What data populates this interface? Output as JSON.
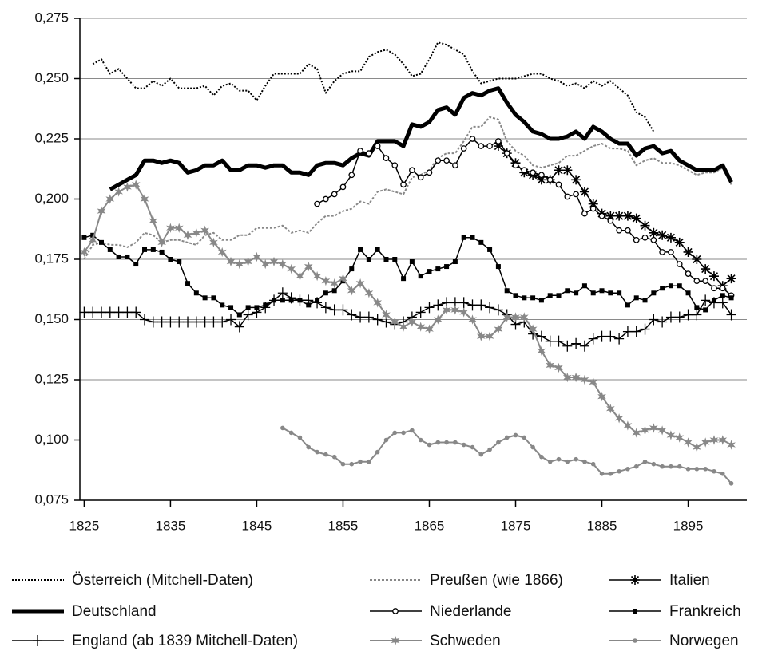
{
  "chart_data": {
    "type": "line",
    "x": [
      1825,
      1826,
      1827,
      1828,
      1829,
      1830,
      1831,
      1832,
      1833,
      1834,
      1835,
      1836,
      1837,
      1838,
      1839,
      1840,
      1841,
      1842,
      1843,
      1844,
      1845,
      1846,
      1847,
      1848,
      1849,
      1850,
      1851,
      1852,
      1853,
      1854,
      1855,
      1856,
      1857,
      1858,
      1859,
      1860,
      1861,
      1862,
      1863,
      1864,
      1865,
      1866,
      1867,
      1868,
      1869,
      1870,
      1871,
      1872,
      1873,
      1874,
      1875,
      1876,
      1877,
      1878,
      1879,
      1880,
      1881,
      1882,
      1883,
      1884,
      1885,
      1886,
      1887,
      1888,
      1889,
      1890,
      1891,
      1892,
      1893,
      1894,
      1895,
      1896,
      1897,
      1898,
      1899,
      1900
    ],
    "xlim": [
      1824.5,
      1901.8
    ],
    "xticks": [
      1825,
      1835,
      1845,
      1855,
      1865,
      1875,
      1885,
      1895
    ],
    "ylim": [
      0.075,
      0.275
    ],
    "yticks": [
      {
        "value": 0.075,
        "label": "0,075"
      },
      {
        "value": 0.1,
        "label": "0,100"
      },
      {
        "value": 0.125,
        "label": "0,125"
      },
      {
        "value": 0.15,
        "label": "0,150"
      },
      {
        "value": 0.175,
        "label": "0,175"
      },
      {
        "value": 0.2,
        "label": "0,200"
      },
      {
        "value": 0.225,
        "label": "0,225"
      },
      {
        "value": 0.25,
        "label": "0,250"
      },
      {
        "value": 0.275,
        "label": "0,275"
      }
    ],
    "grid": true,
    "series": [
      {
        "name": "Österreich (Mitchell-Daten)",
        "color": "#000000",
        "width": 2,
        "dash": "2 2",
        "marker": "none",
        "values": [
          null,
          0.256,
          0.258,
          0.252,
          0.254,
          0.25,
          0.246,
          0.246,
          0.249,
          0.247,
          0.25,
          0.246,
          0.246,
          0.246,
          0.247,
          0.243,
          0.247,
          0.248,
          0.245,
          0.245,
          0.241,
          0.247,
          0.252,
          0.252,
          0.252,
          0.252,
          0.256,
          0.254,
          0.244,
          0.249,
          0.252,
          0.253,
          0.253,
          0.259,
          0.261,
          0.262,
          0.26,
          0.256,
          0.251,
          0.252,
          0.258,
          0.265,
          0.264,
          0.262,
          0.26,
          0.253,
          0.248,
          0.249,
          0.25,
          0.25,
          0.25,
          0.251,
          0.252,
          0.252,
          0.25,
          0.249,
          0.247,
          0.248,
          0.246,
          0.249,
          0.247,
          0.249,
          0.246,
          0.243,
          0.236,
          0.234,
          0.228,
          null,
          null,
          null,
          null,
          null,
          null,
          null,
          null,
          null
        ]
      },
      {
        "name": "Preußen (wie 1866)",
        "color": "#888888",
        "width": 2,
        "dash": "3 2",
        "marker": "none",
        "values": [
          0.175,
          0.181,
          0.182,
          0.181,
          0.181,
          0.18,
          0.182,
          0.186,
          0.185,
          0.182,
          0.183,
          0.183,
          0.182,
          0.181,
          0.185,
          0.186,
          0.183,
          0.183,
          0.185,
          0.185,
          0.188,
          0.188,
          0.188,
          0.189,
          0.186,
          0.187,
          0.186,
          0.19,
          0.193,
          0.193,
          0.195,
          0.196,
          0.199,
          0.198,
          0.203,
          0.204,
          0.203,
          0.202,
          0.209,
          0.21,
          0.212,
          0.217,
          0.219,
          0.219,
          0.224,
          0.23,
          0.23,
          0.234,
          0.233,
          0.224,
          0.22,
          0.218,
          0.214,
          0.213,
          0.214,
          0.215,
          0.218,
          0.218,
          0.22,
          0.222,
          0.223,
          0.221,
          0.221,
          0.22,
          0.214,
          0.216,
          0.217,
          0.215,
          0.215,
          0.214,
          0.212,
          0.21,
          0.211,
          0.211,
          0.213,
          0.206
        ]
      },
      {
        "name": "Italien",
        "color": "#000000",
        "width": 1.5,
        "dash": "none",
        "marker": "asterisk",
        "values": [
          null,
          null,
          null,
          null,
          null,
          null,
          null,
          null,
          null,
          null,
          null,
          null,
          null,
          null,
          null,
          null,
          null,
          null,
          null,
          null,
          null,
          null,
          null,
          null,
          null,
          null,
          null,
          null,
          null,
          null,
          null,
          null,
          null,
          null,
          null,
          null,
          null,
          null,
          null,
          null,
          null,
          null,
          null,
          null,
          null,
          null,
          null,
          null,
          0.222,
          0.219,
          0.215,
          0.211,
          0.21,
          0.208,
          0.208,
          0.212,
          0.212,
          0.208,
          0.203,
          0.198,
          0.194,
          0.193,
          0.193,
          0.193,
          0.192,
          0.189,
          0.186,
          0.185,
          0.184,
          0.182,
          0.178,
          0.175,
          0.171,
          0.168,
          0.164,
          0.167
        ]
      },
      {
        "name": "Deutschland",
        "color": "#000000",
        "width": 5,
        "dash": "none",
        "marker": "none",
        "values": [
          null,
          null,
          null,
          0.204,
          0.206,
          0.208,
          0.21,
          0.216,
          0.216,
          0.215,
          0.216,
          0.215,
          0.211,
          0.212,
          0.214,
          0.214,
          0.216,
          0.212,
          0.212,
          0.214,
          0.214,
          0.213,
          0.214,
          0.214,
          0.211,
          0.211,
          0.21,
          0.214,
          0.215,
          0.215,
          0.214,
          0.217,
          0.219,
          0.218,
          0.224,
          0.224,
          0.224,
          0.222,
          0.231,
          0.23,
          0.232,
          0.237,
          0.238,
          0.235,
          0.242,
          0.244,
          0.243,
          0.245,
          0.246,
          0.24,
          0.235,
          0.232,
          0.228,
          0.227,
          0.225,
          0.225,
          0.226,
          0.228,
          0.225,
          0.23,
          0.228,
          0.225,
          0.223,
          0.223,
          0.218,
          0.221,
          0.222,
          0.219,
          0.22,
          0.216,
          0.214,
          0.212,
          0.212,
          0.212,
          0.214,
          0.207
        ]
      },
      {
        "name": "Niederlande",
        "color": "#000000",
        "width": 1.5,
        "dash": "none",
        "marker": "circle",
        "values": [
          null,
          null,
          null,
          null,
          null,
          null,
          null,
          null,
          null,
          null,
          null,
          null,
          null,
          null,
          null,
          null,
          null,
          null,
          null,
          null,
          null,
          null,
          null,
          null,
          null,
          null,
          null,
          0.198,
          0.2,
          0.202,
          0.205,
          0.21,
          0.22,
          0.219,
          0.222,
          0.217,
          0.214,
          0.206,
          0.212,
          0.209,
          0.211,
          0.216,
          0.216,
          0.214,
          0.221,
          0.225,
          0.222,
          0.222,
          0.224,
          0.219,
          0.214,
          0.212,
          0.211,
          0.21,
          0.208,
          0.206,
          0.201,
          0.202,
          0.194,
          0.196,
          0.193,
          0.191,
          0.187,
          0.187,
          0.183,
          0.184,
          0.183,
          0.178,
          0.178,
          0.173,
          0.169,
          0.166,
          0.166,
          0.163,
          0.163,
          0.16
        ]
      },
      {
        "name": "Frankreich",
        "color": "#000000",
        "width": 1.5,
        "dash": "none",
        "marker": "square",
        "values": [
          0.184,
          0.185,
          0.182,
          0.179,
          0.176,
          0.176,
          0.173,
          0.179,
          0.179,
          0.178,
          0.175,
          0.174,
          0.165,
          0.161,
          0.159,
          0.159,
          0.156,
          0.155,
          0.152,
          0.155,
          0.155,
          0.156,
          0.158,
          0.158,
          0.158,
          0.158,
          0.156,
          0.158,
          0.161,
          0.162,
          0.166,
          0.171,
          0.179,
          0.175,
          0.179,
          0.175,
          0.175,
          0.167,
          0.174,
          0.168,
          0.17,
          0.171,
          0.172,
          0.174,
          0.184,
          0.184,
          0.182,
          0.179,
          0.172,
          0.162,
          0.16,
          0.159,
          0.159,
          0.158,
          0.16,
          0.16,
          0.162,
          0.161,
          0.164,
          0.161,
          0.162,
          0.161,
          0.161,
          0.156,
          0.159,
          0.158,
          0.161,
          0.163,
          0.164,
          0.164,
          0.161,
          0.155,
          0.154,
          0.158,
          0.16,
          0.159
        ]
      },
      {
        "name": "England (ab 1839 Mitchell-Daten)",
        "color": "#000000",
        "width": 1.5,
        "dash": "none",
        "marker": "plus",
        "values": [
          0.153,
          0.153,
          0.153,
          0.153,
          0.153,
          0.153,
          0.153,
          0.15,
          0.149,
          0.149,
          0.149,
          0.149,
          0.149,
          0.149,
          0.149,
          0.149,
          0.149,
          0.15,
          0.147,
          0.152,
          0.153,
          0.155,
          0.158,
          0.161,
          0.159,
          0.158,
          0.158,
          0.157,
          0.155,
          0.154,
          0.154,
          0.152,
          0.151,
          0.151,
          0.15,
          0.149,
          0.148,
          0.149,
          0.151,
          0.153,
          0.155,
          0.156,
          0.157,
          0.157,
          0.157,
          0.156,
          0.156,
          0.155,
          0.154,
          0.152,
          0.148,
          0.149,
          0.144,
          0.143,
          0.141,
          0.141,
          0.139,
          0.14,
          0.139,
          0.142,
          0.143,
          0.143,
          0.142,
          0.145,
          0.145,
          0.146,
          0.15,
          0.149,
          0.151,
          0.151,
          0.152,
          0.152,
          0.158,
          0.157,
          0.157,
          0.152
        ]
      },
      {
        "name": "Schweden",
        "color": "#888888",
        "width": 2,
        "dash": "none",
        "marker": "star",
        "values": [
          0.178,
          0.183,
          0.195,
          0.2,
          0.203,
          0.205,
          0.206,
          0.2,
          0.191,
          0.182,
          0.188,
          0.188,
          0.185,
          0.186,
          0.187,
          0.182,
          0.178,
          0.174,
          0.173,
          0.174,
          0.176,
          0.173,
          0.174,
          0.173,
          0.171,
          0.168,
          0.172,
          0.168,
          0.166,
          0.165,
          0.167,
          0.162,
          0.165,
          0.161,
          0.157,
          0.152,
          0.149,
          0.147,
          0.149,
          0.147,
          0.146,
          0.15,
          0.154,
          0.154,
          0.153,
          0.15,
          0.143,
          0.143,
          0.146,
          0.151,
          0.151,
          0.151,
          0.146,
          0.137,
          0.131,
          0.13,
          0.126,
          0.126,
          0.125,
          0.124,
          0.118,
          0.113,
          0.109,
          0.106,
          0.103,
          0.104,
          0.105,
          0.104,
          0.102,
          0.101,
          0.099,
          0.097,
          0.099,
          0.1,
          0.1,
          0.098
        ]
      },
      {
        "name": "Norwegen",
        "color": "#888888",
        "width": 2,
        "dash": "none",
        "marker": "dot",
        "values": [
          null,
          null,
          null,
          null,
          null,
          null,
          null,
          null,
          null,
          null,
          null,
          null,
          null,
          null,
          null,
          null,
          null,
          null,
          null,
          null,
          null,
          null,
          null,
          0.105,
          0.103,
          0.101,
          0.097,
          0.095,
          0.094,
          0.093,
          0.09,
          0.09,
          0.091,
          0.091,
          0.095,
          0.1,
          0.103,
          0.103,
          0.104,
          0.1,
          0.098,
          0.099,
          0.099,
          0.099,
          0.098,
          0.097,
          0.094,
          0.096,
          0.099,
          0.101,
          0.102,
          0.101,
          0.097,
          0.093,
          0.091,
          0.092,
          0.091,
          0.092,
          0.091,
          0.09,
          0.086,
          0.086,
          0.087,
          0.088,
          0.089,
          0.091,
          0.09,
          0.089,
          0.089,
          0.089,
          0.088,
          0.088,
          0.088,
          0.087,
          0.086,
          0.082
        ]
      }
    ]
  }
}
